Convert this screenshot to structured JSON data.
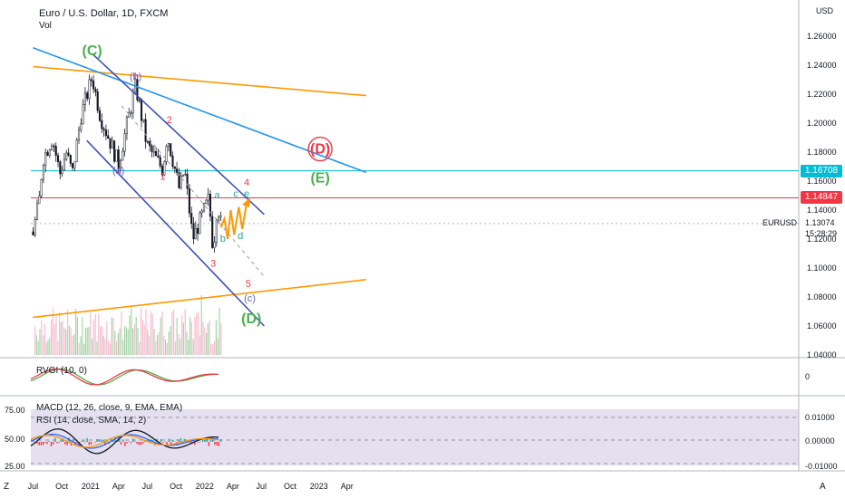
{
  "header": {
    "title": "Euro / U.S. Dollar, 1D, FXCM",
    "vol_label": "Vol",
    "currency": "USD"
  },
  "price_tags": [
    {
      "value": "1.16708",
      "color": "#00bcd4"
    },
    {
      "value": "1.14847",
      "color": "#f23645"
    }
  ],
  "symbol_label": {
    "symbol": "EURUSD",
    "price": "1.13074",
    "countdown": "15:28:29"
  },
  "indicators": {
    "rvgi": "RVGI (10, 0)",
    "macd": "MACD (12, 26, close, 9, EMA, EMA)",
    "rsi": "RSI (14, close, SMA, 14, 2)",
    "rvgi_zero": "0"
  },
  "bottom_bar": {
    "left": "Z",
    "right": "A"
  },
  "chart_data": {
    "type": "candlestick",
    "y_axis": {
      "ticks": [
        "1.26000",
        "1.24000",
        "1.22000",
        "1.20000",
        "1.18000",
        "1.16000",
        "1.14000",
        "1.12000",
        "1.10000",
        "1.08000",
        "1.06000",
        "1.04000"
      ],
      "range": [
        1.04,
        1.265
      ]
    },
    "x_axis": {
      "ticks": [
        "Jul",
        "Oct",
        "2021",
        "Apr",
        "Jul",
        "Oct",
        "2022",
        "Apr",
        "Jul",
        "Oct",
        "2023",
        "Apr"
      ]
    },
    "price_path": [
      [
        "2020-07-01",
        1.125
      ],
      [
        "2020-07-20",
        1.145
      ],
      [
        "2020-08-01",
        1.175
      ],
      [
        "2020-09-01",
        1.19
      ],
      [
        "2020-09-25",
        1.165
      ],
      [
        "2020-10-15",
        1.18
      ],
      [
        "2020-11-04",
        1.165
      ],
      [
        "2020-12-01",
        1.205
      ],
      [
        "2021-01-06",
        1.232
      ],
      [
        "2021-02-01",
        1.205
      ],
      [
        "2021-03-31",
        1.172
      ],
      [
        "2021-05-25",
        1.226
      ],
      [
        "2021-06-30",
        1.185
      ],
      [
        "2021-08-20",
        1.168
      ],
      [
        "2021-09-03",
        1.192
      ],
      [
        "2021-10-12",
        1.154
      ],
      [
        "2021-10-28",
        1.168
      ],
      [
        "2021-11-24",
        1.12
      ],
      [
        "2022-01-14",
        1.148
      ],
      [
        "2022-01-28",
        1.112
      ],
      [
        "2022-02-10",
        1.145
      ],
      [
        "2022-02-22",
        1.13
      ]
    ],
    "wave_labels": [
      {
        "text": "(C)",
        "date": "2021-01-06",
        "price": 1.247,
        "color": "#4caf50"
      },
      {
        "text": "(b)",
        "date": "2021-05-25",
        "price": 1.23,
        "color": "#7e57c2"
      },
      {
        "text": "(a)",
        "date": "2021-03-31",
        "price": 1.165,
        "color": "#7e57c2"
      },
      {
        "text": "1",
        "date": "2021-08-20",
        "price": 1.161,
        "color": "#f23645"
      },
      {
        "text": "2",
        "date": "2021-09-10",
        "price": 1.2,
        "color": "#f23645"
      },
      {
        "text": "3",
        "date": "2022-01-28",
        "price": 1.101,
        "color": "#f23645"
      },
      {
        "text": "4",
        "date": "2022-05-15",
        "price": 1.157,
        "color": "#f23645"
      },
      {
        "text": "5",
        "date": "2022-05-20",
        "price": 1.087,
        "color": "#f23645"
      },
      {
        "text": "a",
        "date": "2022-02-10",
        "price": 1.148,
        "color": "#26a69a"
      },
      {
        "text": "b",
        "date": "2022-02-28",
        "price": 1.118,
        "color": "#26a69a"
      },
      {
        "text": "c",
        "date": "2022-04-10",
        "price": 1.149,
        "color": "#26a69a"
      },
      {
        "text": "d",
        "date": "2022-04-25",
        "price": 1.12,
        "color": "#26a69a"
      },
      {
        "text": "e",
        "date": "2022-05-15",
        "price": 1.149,
        "color": "#26a69a"
      },
      {
        "text": "(c)",
        "date": "2022-05-25",
        "price": 1.077,
        "color": "#5c6bc0"
      },
      {
        "text": "(D)",
        "date": "2022-05-30",
        "price": 1.062,
        "color": "#4caf50"
      },
      {
        "text": "(D)",
        "date": "2023-01-05",
        "price": 1.179,
        "color": "#f23645"
      },
      {
        "text": "(E)",
        "date": "2023-01-05",
        "price": 1.159,
        "color": "#4caf50"
      }
    ],
    "projection_path": [
      [
        "2022-02-22",
        1.128
      ],
      [
        "2022-03-05",
        1.134
      ],
      [
        "2022-03-15",
        1.12
      ],
      [
        "2022-03-25",
        1.14
      ],
      [
        "2022-04-05",
        1.123
      ],
      [
        "2022-04-20",
        1.142
      ],
      [
        "2022-05-01",
        1.127
      ],
      [
        "2022-05-15",
        1.145
      ]
    ],
    "lines": [
      {
        "name": "orange-upper",
        "color": "#ff9800",
        "p1": [
          "2020-07-01",
          1.239
        ],
        "p2": [
          "2023-06-01",
          1.219
        ]
      },
      {
        "name": "orange-lower",
        "color": "#ff9800",
        "p1": [
          "2020-07-01",
          1.066
        ],
        "p2": [
          "2023-06-01",
          1.092
        ]
      },
      {
        "name": "blue-trend",
        "color": "#2196f3",
        "p1": [
          "2020-07-01",
          1.252
        ],
        "p2": [
          "2023-06-01",
          1.166
        ]
      },
      {
        "name": "channel-upper",
        "color": "#3f51b5",
        "p1": [
          "2021-01-06",
          1.248
        ],
        "p2": [
          "2022-07-10",
          1.137
        ]
      },
      {
        "name": "channel-lower",
        "color": "#3f51b5",
        "p1": [
          "2020-12-20",
          1.188
        ],
        "p2": [
          "2022-07-10",
          1.06
        ]
      },
      {
        "name": "channel-mid-dashed",
        "color": "#9e9e9e",
        "p1": [
          "2021-04-10",
          1.212
        ],
        "p2": [
          "2022-07-10",
          1.094
        ]
      }
    ],
    "horizontal_levels": [
      {
        "value": 1.16708,
        "color": "#00bcd4",
        "style": "solid"
      },
      {
        "value": 1.14847,
        "color": "#f23645",
        "style": "solid"
      },
      {
        "value": 1.13074,
        "color": "#b2b5be",
        "style": "dotted"
      }
    ],
    "volume_axis": {
      "max": 1.0
    },
    "rvgi": {
      "type": "line",
      "series": [
        "green",
        "red"
      ]
    },
    "lower_pane": {
      "left_ticks": [
        "75.00",
        "50.00",
        "25.00"
      ],
      "right_ticks": [
        "0.01000",
        "0.00000",
        "-0.01000"
      ]
    }
  }
}
